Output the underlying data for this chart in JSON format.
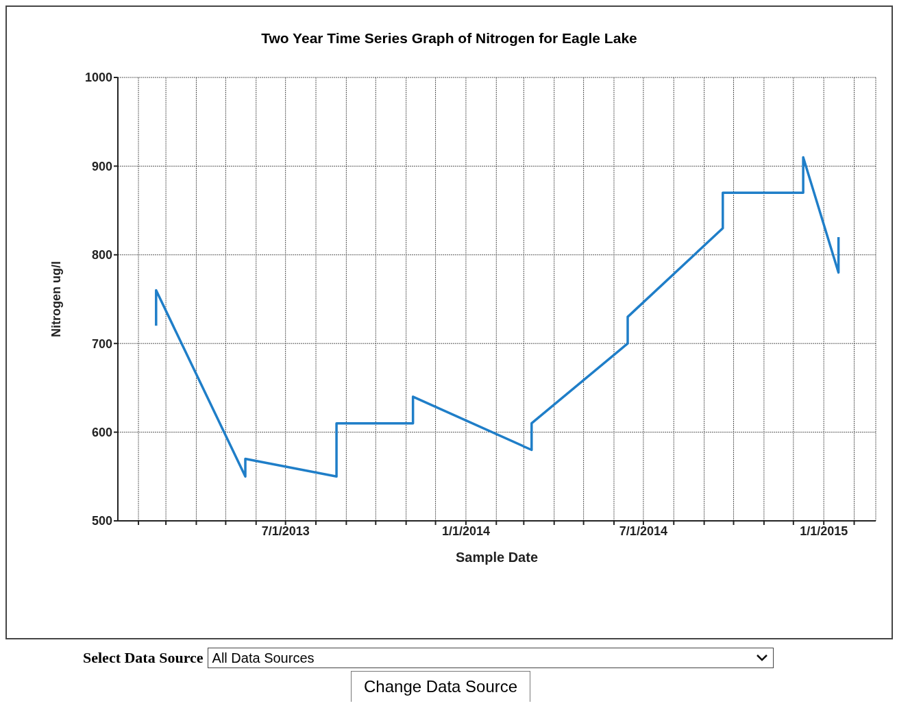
{
  "chart_data": {
    "type": "line",
    "title": "Two Year Time Series Graph of Nitrogen for Eagle Lake",
    "xlabel": "Sample Date",
    "ylabel": "Nitrogen ug/l",
    "x": [
      "2013-02-19",
      "2013-02-19",
      "2013-05-21",
      "2013-05-21",
      "2013-08-22",
      "2013-08-22",
      "2013-11-08",
      "2013-11-08",
      "2014-03-09",
      "2014-03-09",
      "2014-06-15",
      "2014-06-15",
      "2014-09-20",
      "2014-09-20",
      "2014-12-11",
      "2014-12-11",
      "2015-01-16",
      "2015-01-16"
    ],
    "series": [
      {
        "color": "#1f7ec8",
        "values": [
          720,
          760,
          550,
          570,
          550,
          610,
          610,
          640,
          580,
          610,
          700,
          730,
          830,
          870,
          870,
          910,
          780,
          820
        ]
      }
    ],
    "xlim": [
      "2013-01-11",
      "2015-02-23"
    ],
    "xticks": [
      {
        "value": "2013-02-01",
        "label": null
      },
      {
        "value": "2013-03-01",
        "label": null
      },
      {
        "value": "2013-04-01",
        "label": null
      },
      {
        "value": "2013-05-01",
        "label": null
      },
      {
        "value": "2013-06-01",
        "label": null
      },
      {
        "value": "2013-07-01",
        "label": "7/1/2013"
      },
      {
        "value": "2013-08-01",
        "label": null
      },
      {
        "value": "2013-09-01",
        "label": null
      },
      {
        "value": "2013-10-01",
        "label": null
      },
      {
        "value": "2013-11-01",
        "label": null
      },
      {
        "value": "2013-12-01",
        "label": null
      },
      {
        "value": "2014-01-01",
        "label": "1/1/2014"
      },
      {
        "value": "2014-02-01",
        "label": null
      },
      {
        "value": "2014-03-01",
        "label": null
      },
      {
        "value": "2014-04-01",
        "label": null
      },
      {
        "value": "2014-05-01",
        "label": null
      },
      {
        "value": "2014-06-01",
        "label": null
      },
      {
        "value": "2014-07-01",
        "label": "7/1/2014"
      },
      {
        "value": "2014-08-01",
        "label": null
      },
      {
        "value": "2014-09-01",
        "label": null
      },
      {
        "value": "2014-10-01",
        "label": null
      },
      {
        "value": "2014-11-01",
        "label": null
      },
      {
        "value": "2014-12-01",
        "label": null
      },
      {
        "value": "2015-01-01",
        "label": "1/1/2015"
      },
      {
        "value": "2015-02-01",
        "label": null
      }
    ],
    "ylim": [
      500,
      1000
    ],
    "yticks": [
      500,
      600,
      700,
      800,
      900,
      1000
    ],
    "grid": true,
    "marker": "none",
    "line_style": "solid",
    "annotations": [
      "Select Data Source",
      "All Data Sources",
      "Change Data Source"
    ]
  }
}
